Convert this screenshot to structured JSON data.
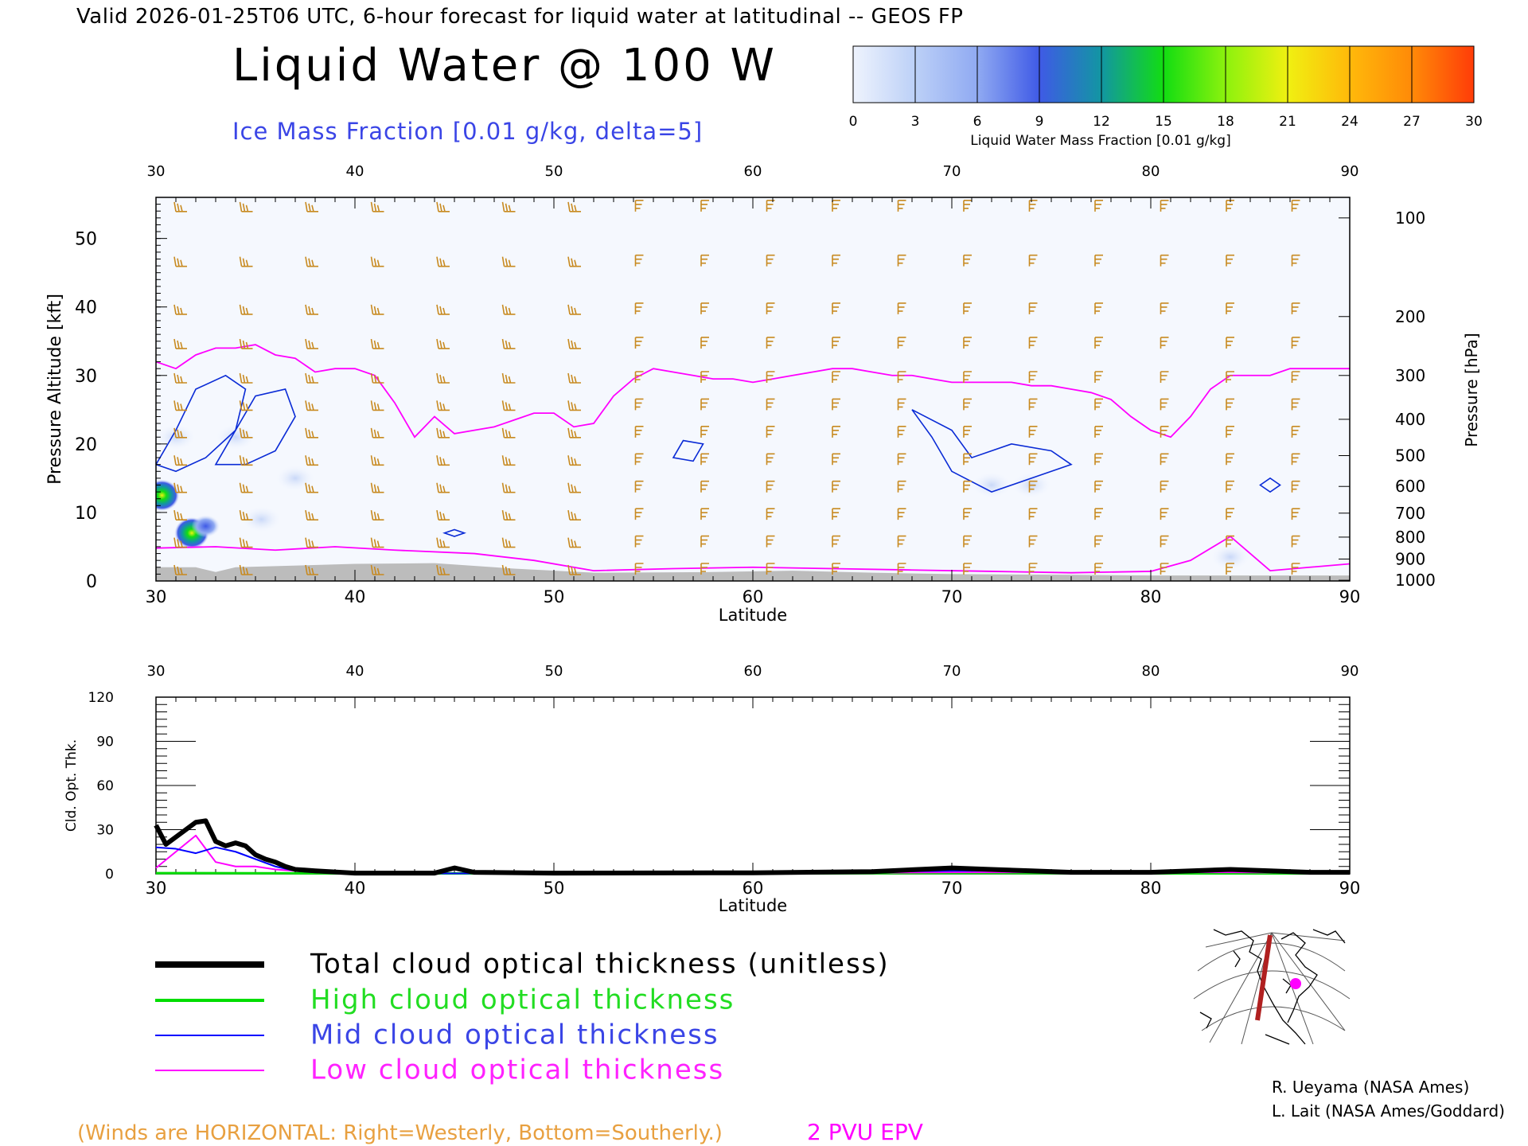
{
  "header": {
    "valid_line": "Valid 2026-01-25T06 UTC, 6-hour forecast for liquid water at latitudinal -- GEOS FP",
    "title": "Liquid Water @ 100 W",
    "subtitle": "Ice Mass Fraction [0.01 g/kg, delta=5]"
  },
  "colorbar": {
    "ticks": [
      "0",
      "3",
      "6",
      "9",
      "12",
      "15",
      "18",
      "21",
      "24",
      "27",
      "30"
    ],
    "label": "Liquid Water Mass Fraction [0.01 g/kg]",
    "colors": [
      "#eef3fd",
      "#bcd0f7",
      "#90aaf2",
      "#3f5ae6",
      "#1296a2",
      "#12dd12",
      "#8cf20d",
      "#f0f011",
      "#ffb90a",
      "#ff8a08",
      "#ff3c08"
    ]
  },
  "chart_data": [
    {
      "type": "heatmap",
      "xlabel": "Latitude",
      "ylabel": "Pressure Altitude [kft]",
      "ylabel_right": "Pressure [hPa]",
      "xlim": [
        30,
        90
      ],
      "ylim": [
        0,
        56
      ],
      "x_ticks": [
        "30",
        "40",
        "50",
        "60",
        "70",
        "80",
        "90"
      ],
      "y_ticks": [
        "0",
        "10",
        "20",
        "30",
        "40",
        "50"
      ],
      "pressure_ticks": [
        {
          "label": "100",
          "kft": 53
        },
        {
          "label": "200",
          "kft": 38.6
        },
        {
          "label": "300",
          "kft": 30
        },
        {
          "label": "400",
          "kft": 23.6
        },
        {
          "label": "500",
          "kft": 18.3
        },
        {
          "label": "600",
          "kft": 13.8
        },
        {
          "label": "700",
          "kft": 9.9
        },
        {
          "label": "800",
          "kft": 6.4
        },
        {
          "label": "900",
          "kft": 3.2
        },
        {
          "label": "1000",
          "kft": 0.1
        }
      ],
      "pv2_tropopause_kft": [
        [
          30,
          32
        ],
        [
          31,
          31
        ],
        [
          32,
          33
        ],
        [
          33,
          34
        ],
        [
          34,
          34
        ],
        [
          35,
          34.5
        ],
        [
          36,
          33
        ],
        [
          37,
          32.5
        ],
        [
          38,
          30.5
        ],
        [
          39,
          31
        ],
        [
          40,
          31
        ],
        [
          41,
          30
        ],
        [
          42,
          26
        ],
        [
          43,
          21
        ],
        [
          44,
          24
        ],
        [
          45,
          21.5
        ],
        [
          46,
          22
        ],
        [
          47,
          22.5
        ],
        [
          48,
          23.5
        ],
        [
          49,
          24.5
        ],
        [
          50,
          24.5
        ],
        [
          51,
          22.5
        ],
        [
          52,
          23
        ],
        [
          53,
          27
        ],
        [
          54,
          29.5
        ],
        [
          55,
          31
        ],
        [
          56,
          30.5
        ],
        [
          57,
          30
        ],
        [
          58,
          29.5
        ],
        [
          59,
          29.5
        ],
        [
          60,
          29
        ],
        [
          61,
          29.5
        ],
        [
          62,
          30
        ],
        [
          63,
          30.5
        ],
        [
          64,
          31
        ],
        [
          65,
          31
        ],
        [
          66,
          30.5
        ],
        [
          67,
          30
        ],
        [
          68,
          30
        ],
        [
          69,
          29.5
        ],
        [
          70,
          29
        ],
        [
          71,
          29
        ],
        [
          72,
          29
        ],
        [
          73,
          29
        ],
        [
          74,
          28.5
        ],
        [
          75,
          28.5
        ],
        [
          76,
          28
        ],
        [
          77,
          27.5
        ],
        [
          78,
          26.5
        ],
        [
          79,
          24
        ],
        [
          80,
          22
        ],
        [
          81,
          21
        ],
        [
          82,
          24
        ],
        [
          83,
          28
        ],
        [
          84,
          30
        ],
        [
          85,
          30
        ],
        [
          86,
          30
        ],
        [
          87,
          31
        ],
        [
          88,
          31
        ],
        [
          89,
          31
        ],
        [
          90,
          31
        ]
      ],
      "pv2_surface_kft": [
        [
          30,
          4.8
        ],
        [
          33,
          5
        ],
        [
          36,
          4.5
        ],
        [
          39,
          5
        ],
        [
          42,
          4.5
        ],
        [
          46,
          4
        ],
        [
          49,
          3
        ],
        [
          52,
          1.5
        ],
        [
          56,
          1.8
        ],
        [
          60,
          2
        ],
        [
          64,
          1.8
        ],
        [
          68,
          1.6
        ],
        [
          72,
          1.4
        ],
        [
          76,
          1.2
        ],
        [
          80,
          1.4
        ],
        [
          82,
          3
        ],
        [
          84,
          6.5
        ],
        [
          86,
          1.5
        ],
        [
          88,
          2
        ],
        [
          90,
          2.5
        ]
      ],
      "ice_contours_kft": [
        [
          [
            30,
            17
          ],
          [
            31,
            22
          ],
          [
            32,
            28
          ],
          [
            33.5,
            30
          ],
          [
            34.5,
            28
          ],
          [
            34,
            22
          ],
          [
            32.5,
            18
          ],
          [
            31,
            16
          ]
        ],
        [
          [
            33,
            17
          ],
          [
            34,
            22
          ],
          [
            35,
            27
          ],
          [
            36.5,
            28
          ],
          [
            37,
            24
          ],
          [
            36,
            19
          ],
          [
            34.5,
            17
          ]
        ],
        [
          [
            56,
            18
          ],
          [
            56.5,
            20.5
          ],
          [
            57.5,
            20
          ],
          [
            57,
            17.5
          ]
        ],
        [
          [
            68,
            25
          ],
          [
            69,
            21
          ],
          [
            70,
            16
          ],
          [
            72,
            13
          ],
          [
            74,
            15
          ],
          [
            76,
            17
          ],
          [
            75,
            19
          ],
          [
            73,
            20
          ],
          [
            71,
            18
          ],
          [
            70,
            22
          ]
        ],
        [
          [
            85.5,
            14
          ],
          [
            86,
            13
          ],
          [
            86.5,
            14
          ],
          [
            86,
            15
          ]
        ],
        [
          [
            44.5,
            7
          ],
          [
            45,
            6.5
          ],
          [
            45.5,
            7
          ],
          [
            45,
            7.5
          ]
        ]
      ],
      "liquid_hotspots": [
        {
          "lat": 30.3,
          "kft": 12.5,
          "value": 18
        },
        {
          "lat": 31.8,
          "kft": 7,
          "value": 20
        },
        {
          "lat": 32.5,
          "kft": 8,
          "value": 6
        },
        {
          "lat": 35.3,
          "kft": 9,
          "value": 3
        },
        {
          "lat": 31,
          "kft": 21,
          "value": 3
        },
        {
          "lat": 34,
          "kft": 21,
          "value": 3
        },
        {
          "lat": 37,
          "kft": 15,
          "value": 3
        },
        {
          "lat": 72,
          "kft": 14,
          "value": 1
        },
        {
          "lat": 74,
          "kft": 14,
          "value": 1
        },
        {
          "lat": 84,
          "kft": 3.5,
          "value": 1
        }
      ],
      "terrain_kft": [
        [
          30,
          2
        ],
        [
          32,
          2
        ],
        [
          33,
          1.3
        ],
        [
          34,
          2
        ],
        [
          40,
          2.5
        ],
        [
          44,
          2.6
        ],
        [
          47,
          2
        ],
        [
          48,
          1.8
        ],
        [
          52,
          1.2
        ],
        [
          58,
          1.3
        ],
        [
          62,
          1.5
        ],
        [
          66,
          1.2
        ],
        [
          70,
          1
        ],
        [
          76,
          0.9
        ],
        [
          80,
          0.8
        ],
        [
          90,
          0.8
        ]
      ]
    },
    {
      "type": "line",
      "xlabel": "Latitude",
      "ylabel": "Cld. Opt. Thk.",
      "xlim": [
        30,
        90
      ],
      "ylim": [
        0,
        120
      ],
      "x_ticks": [
        "30",
        "40",
        "50",
        "60",
        "70",
        "80",
        "90"
      ],
      "y_ticks": [
        "0",
        "30",
        "60",
        "90",
        "120"
      ],
      "series": [
        {
          "name": "Total cloud optical thickness (unitless)",
          "color": "#000000",
          "points": [
            [
              30,
              33
            ],
            [
              30.5,
              20
            ],
            [
              31,
              25
            ],
            [
              31.5,
              30
            ],
            [
              32,
              35
            ],
            [
              32.5,
              36
            ],
            [
              33,
              22
            ],
            [
              33.5,
              19
            ],
            [
              34,
              21
            ],
            [
              34.5,
              19
            ],
            [
              35,
              13
            ],
            [
              35.5,
              10
            ],
            [
              36,
              8
            ],
            [
              36.5,
              5
            ],
            [
              37,
              3
            ],
            [
              38,
              2
            ],
            [
              40,
              0.5
            ],
            [
              44,
              0.5
            ],
            [
              45,
              4
            ],
            [
              46,
              1
            ],
            [
              50,
              0.5
            ],
            [
              60,
              0.7
            ],
            [
              66,
              1.5
            ],
            [
              70,
              4
            ],
            [
              72,
              3
            ],
            [
              74,
              2
            ],
            [
              76,
              1
            ],
            [
              80,
              1
            ],
            [
              84,
              3
            ],
            [
              86,
              2
            ],
            [
              88,
              1
            ],
            [
              90,
              1
            ]
          ]
        },
        {
          "name": "High cloud optical thickness",
          "color": "#00dd00",
          "points": [
            [
              30,
              0.5
            ],
            [
              40,
              0.3
            ],
            [
              50,
              0.3
            ],
            [
              60,
              0.3
            ],
            [
              70,
              0.5
            ],
            [
              80,
              0.3
            ],
            [
              90,
              0.3
            ]
          ]
        },
        {
          "name": "Mid cloud optical thickness",
          "color": "#0000ff",
          "points": [
            [
              30,
              18
            ],
            [
              31,
              17
            ],
            [
              32,
              14
            ],
            [
              33,
              18
            ],
            [
              34,
              15
            ],
            [
              35,
              10
            ],
            [
              36,
              5
            ],
            [
              37,
              2
            ],
            [
              38,
              1
            ],
            [
              40,
              0.3
            ],
            [
              50,
              0.3
            ],
            [
              60,
              0.5
            ],
            [
              70,
              2
            ],
            [
              72,
              2
            ],
            [
              76,
              1
            ],
            [
              84,
              2
            ],
            [
              90,
              0.5
            ]
          ]
        },
        {
          "name": "Low cloud optical thickness",
          "color": "#ff00ff",
          "points": [
            [
              30,
              4
            ],
            [
              31,
              15
            ],
            [
              32,
              26
            ],
            [
              33,
              8
            ],
            [
              34,
              5
            ],
            [
              35,
              5
            ],
            [
              36,
              3
            ],
            [
              38,
              1
            ],
            [
              40,
              0.3
            ],
            [
              44,
              0.3
            ],
            [
              45,
              4
            ],
            [
              46,
              0.5
            ],
            [
              60,
              0.5
            ],
            [
              70,
              1
            ],
            [
              84,
              1
            ],
            [
              90,
              0.5
            ]
          ]
        }
      ]
    }
  ],
  "legend": {
    "total_label": "Total cloud optical thickness (unitless)",
    "high_label": "High cloud optical thickness",
    "mid_label": "Mid cloud optical thickness",
    "low_label": "Low cloud optical thickness"
  },
  "footer": {
    "winds_note": "(Winds are HORIZONTAL: Right=Westerly, Bottom=Southerly.)",
    "pvu_label": "2 PVU EPV",
    "credit_1": "R. Ueyama (NASA Ames)",
    "credit_2": "L. Lait (NASA Ames/Goddard)"
  },
  "colors": {
    "wind": "#c88a20",
    "pv": "#ff00ff",
    "ice_contour": "#0a2bd6",
    "title_blue": "#3a45e6",
    "orange_text": "#e8a040",
    "terrain": "#bcbcbc"
  }
}
